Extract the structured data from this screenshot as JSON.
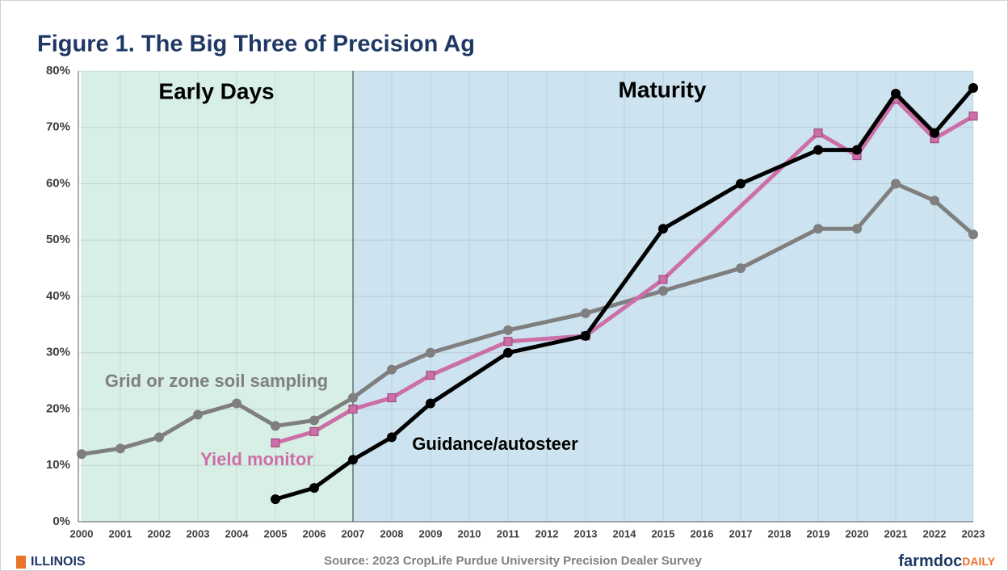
{
  "chart_data": {
    "type": "line",
    "title": "Figure 1. The Big Three of Precision Ag",
    "xlim": [
      2000,
      2023
    ],
    "xticks": [
      2000,
      2001,
      2002,
      2003,
      2004,
      2005,
      2006,
      2007,
      2008,
      2009,
      2010,
      2011,
      2012,
      2013,
      2014,
      2015,
      2016,
      2017,
      2018,
      2019,
      2020,
      2021,
      2022,
      2023
    ],
    "ylim": [
      0,
      80
    ],
    "yticks": [
      {
        "value": 0,
        "label": "0%"
      },
      {
        "value": 10,
        "label": "10%"
      },
      {
        "value": 20,
        "label": "20%"
      },
      {
        "value": 30,
        "label": "30%"
      },
      {
        "value": 40,
        "label": "40%"
      },
      {
        "value": 50,
        "label": "50%"
      },
      {
        "value": 60,
        "label": "60%"
      },
      {
        "value": 70,
        "label": "70%"
      },
      {
        "value": 80,
        "label": "80%"
      }
    ],
    "grid": true,
    "regions": [
      {
        "label": "Early Days",
        "x0": 2000,
        "x1": 2007,
        "color": "#d8efe5"
      },
      {
        "label": "Maturity",
        "x0": 2007,
        "x1": 2023,
        "color": "#cde3ef"
      }
    ],
    "series": [
      {
        "name": "Grid or zone soil sampling",
        "color": "#7f7f7f",
        "marker": "circle",
        "x": [
          2000,
          2001,
          2002,
          2003,
          2004,
          2005,
          2006,
          2007,
          2008,
          2009,
          2011,
          2013,
          2015,
          2017,
          2019,
          2020,
          2021,
          2022,
          2023
        ],
        "values": [
          12,
          13,
          15,
          19,
          21,
          17,
          18,
          22,
          27,
          30,
          34,
          37,
          41,
          45,
          52,
          52,
          60,
          57,
          51
        ]
      },
      {
        "name": "Yield monitor",
        "color": "#cc6fa8",
        "marker": "square",
        "x": [
          2005,
          2006,
          2007,
          2008,
          2009,
          2011,
          2013,
          2015,
          2019,
          2020,
          2021,
          2022,
          2023
        ],
        "values": [
          14,
          16,
          20,
          22,
          26,
          32,
          33,
          43,
          69,
          65,
          75,
          68,
          72
        ]
      },
      {
        "name": "Guidance/autosteer",
        "color": "#000000",
        "marker": "circle",
        "x": [
          2005,
          2006,
          2007,
          2008,
          2009,
          2011,
          2013,
          2015,
          2017,
          2019,
          2020,
          2021,
          2022,
          2023
        ],
        "values": [
          4,
          6,
          11,
          15,
          21,
          30,
          33,
          52,
          60,
          66,
          66,
          76,
          69,
          77
        ]
      }
    ]
  },
  "footer": {
    "left": "ILLINOIS",
    "source": "Source: 2023 CropLife Purdue University Precision Dealer Survey",
    "brand": "farmdoc",
    "brand_suffix": "DAILY"
  }
}
